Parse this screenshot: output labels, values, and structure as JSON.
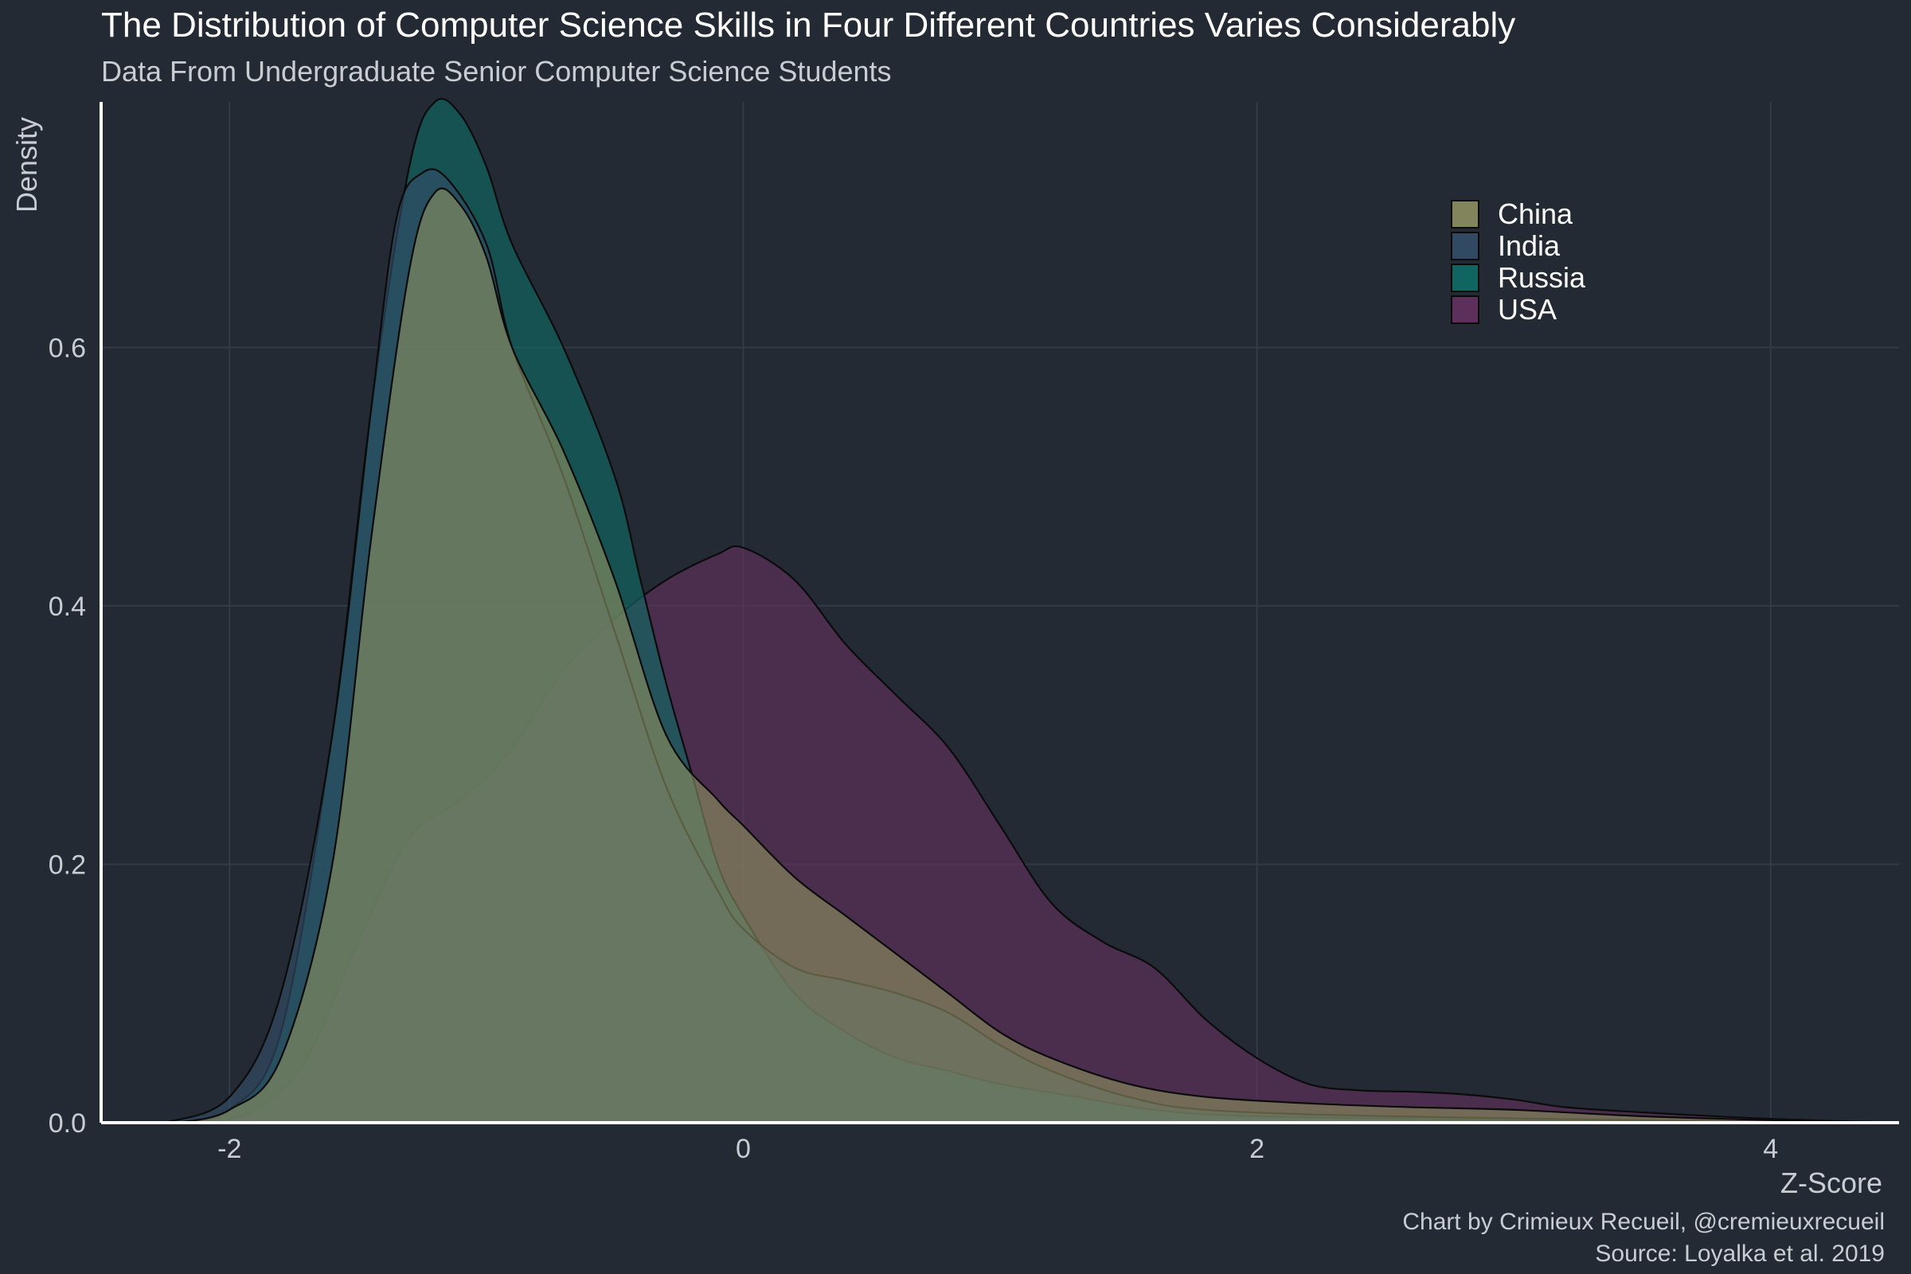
{
  "chart_data": {
    "type": "area",
    "title": "The Distribution of Computer Science Skills in Four Different Countries Varies Considerably",
    "subtitle": "Data From Undergraduate Senior Computer Science Students",
    "xlabel": "Z-Score",
    "ylabel": "Density",
    "caption": [
      "Chart by Crimieux Recueil, @cremieuxrecueil",
      "Source: Loyalka et al. 2019"
    ],
    "xlim": [
      -2.5,
      4.5
    ],
    "ylim": [
      0,
      0.79
    ],
    "x_ticks": [
      -2,
      0,
      2,
      4
    ],
    "y_ticks": [
      0.0,
      0.2,
      0.4,
      0.6
    ],
    "grid": true,
    "legend": "top-right",
    "series": [
      {
        "name": "China",
        "color": "#8d8f5f",
        "points": [
          [
            -2.2,
            0.0
          ],
          [
            -2.0,
            0.01
          ],
          [
            -1.8,
            0.05
          ],
          [
            -1.6,
            0.2
          ],
          [
            -1.45,
            0.45
          ],
          [
            -1.3,
            0.66
          ],
          [
            -1.2,
            0.72
          ],
          [
            -1.1,
            0.71
          ],
          [
            -1.0,
            0.67
          ],
          [
            -0.9,
            0.6
          ],
          [
            -0.7,
            0.52
          ],
          [
            -0.5,
            0.42
          ],
          [
            -0.3,
            0.3
          ],
          [
            -0.1,
            0.25
          ],
          [
            0.0,
            0.23
          ],
          [
            0.2,
            0.19
          ],
          [
            0.4,
            0.16
          ],
          [
            0.6,
            0.13
          ],
          [
            0.8,
            0.1
          ],
          [
            1.0,
            0.07
          ],
          [
            1.2,
            0.05
          ],
          [
            1.5,
            0.03
          ],
          [
            1.8,
            0.02
          ],
          [
            2.2,
            0.015
          ],
          [
            2.6,
            0.012
          ],
          [
            3.0,
            0.01
          ],
          [
            3.5,
            0.005
          ],
          [
            4.0,
            0.002
          ],
          [
            4.5,
            0.0
          ]
        ]
      },
      {
        "name": "India",
        "color": "#344d69",
        "points": [
          [
            -2.25,
            0.0
          ],
          [
            -2.0,
            0.02
          ],
          [
            -1.8,
            0.1
          ],
          [
            -1.6,
            0.3
          ],
          [
            -1.45,
            0.55
          ],
          [
            -1.35,
            0.7
          ],
          [
            -1.25,
            0.735
          ],
          [
            -1.15,
            0.73
          ],
          [
            -1.0,
            0.68
          ],
          [
            -0.9,
            0.6
          ],
          [
            -0.7,
            0.5
          ],
          [
            -0.5,
            0.38
          ],
          [
            -0.3,
            0.26
          ],
          [
            -0.1,
            0.18
          ],
          [
            0.0,
            0.15
          ],
          [
            0.2,
            0.12
          ],
          [
            0.4,
            0.11
          ],
          [
            0.6,
            0.1
          ],
          [
            0.8,
            0.085
          ],
          [
            1.0,
            0.06
          ],
          [
            1.2,
            0.04
          ],
          [
            1.5,
            0.02
          ],
          [
            1.8,
            0.01
          ],
          [
            2.5,
            0.005
          ],
          [
            3.5,
            0.002
          ],
          [
            4.5,
            0.0
          ]
        ]
      },
      {
        "name": "Russia",
        "color": "#0f6b66",
        "points": [
          [
            -2.2,
            0.0
          ],
          [
            -2.0,
            0.01
          ],
          [
            -1.8,
            0.07
          ],
          [
            -1.6,
            0.3
          ],
          [
            -1.45,
            0.55
          ],
          [
            -1.3,
            0.74
          ],
          [
            -1.2,
            0.79
          ],
          [
            -1.1,
            0.78
          ],
          [
            -1.0,
            0.74
          ],
          [
            -0.9,
            0.68
          ],
          [
            -0.7,
            0.6
          ],
          [
            -0.5,
            0.5
          ],
          [
            -0.4,
            0.42
          ],
          [
            -0.3,
            0.34
          ],
          [
            -0.2,
            0.27
          ],
          [
            -0.1,
            0.2
          ],
          [
            0.0,
            0.16
          ],
          [
            0.2,
            0.1
          ],
          [
            0.4,
            0.07
          ],
          [
            0.6,
            0.05
          ],
          [
            0.8,
            0.04
          ],
          [
            1.0,
            0.03
          ],
          [
            1.3,
            0.02
          ],
          [
            1.6,
            0.01
          ],
          [
            2.0,
            0.005
          ],
          [
            3.0,
            0.002
          ],
          [
            4.5,
            0.0
          ]
        ]
      },
      {
        "name": "USA",
        "color": "#64315f",
        "points": [
          [
            -2.1,
            0.0
          ],
          [
            -1.9,
            0.01
          ],
          [
            -1.7,
            0.05
          ],
          [
            -1.5,
            0.14
          ],
          [
            -1.3,
            0.22
          ],
          [
            -1.1,
            0.25
          ],
          [
            -0.9,
            0.29
          ],
          [
            -0.7,
            0.35
          ],
          [
            -0.5,
            0.39
          ],
          [
            -0.3,
            0.42
          ],
          [
            -0.1,
            0.44
          ],
          [
            0.0,
            0.445
          ],
          [
            0.2,
            0.42
          ],
          [
            0.4,
            0.37
          ],
          [
            0.6,
            0.33
          ],
          [
            0.8,
            0.29
          ],
          [
            1.0,
            0.23
          ],
          [
            1.2,
            0.17
          ],
          [
            1.4,
            0.14
          ],
          [
            1.6,
            0.12
          ],
          [
            1.8,
            0.08
          ],
          [
            2.0,
            0.05
          ],
          [
            2.2,
            0.03
          ],
          [
            2.4,
            0.025
          ],
          [
            2.6,
            0.024
          ],
          [
            2.8,
            0.022
          ],
          [
            3.0,
            0.018
          ],
          [
            3.2,
            0.012
          ],
          [
            3.5,
            0.008
          ],
          [
            4.0,
            0.003
          ],
          [
            4.5,
            0.0
          ]
        ]
      }
    ]
  }
}
